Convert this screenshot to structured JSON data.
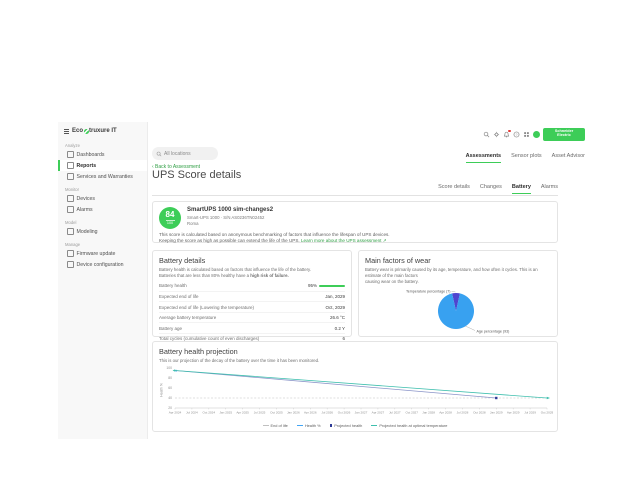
{
  "brand": {
    "prefix": "Eco",
    "suffix": "truxure IT"
  },
  "topbar": {
    "search_placeholder": "All locations",
    "icons": [
      "search-icon",
      "settings-icon",
      "notifications-icon",
      "help-icon",
      "apps-icon",
      "avatar"
    ],
    "notification_badge_color": "#e53935",
    "logo_line1": "Schneider",
    "logo_line2": "Electric"
  },
  "sidebar": {
    "sections": [
      {
        "label": "Analyze",
        "items": [
          {
            "label": "Dashboards",
            "icon": "dashboards-icon",
            "active": false
          },
          {
            "label": "Reports",
            "icon": "reports-icon",
            "active": true
          },
          {
            "label": "Services and Warranties",
            "icon": "services-icon",
            "active": false
          }
        ]
      },
      {
        "label": "Monitor",
        "items": [
          {
            "label": "Devices",
            "icon": "devices-icon",
            "active": false
          },
          {
            "label": "Alarms",
            "icon": "alarms-icon",
            "active": false
          }
        ]
      },
      {
        "label": "Model",
        "items": [
          {
            "label": "Modeling",
            "icon": "modeling-icon",
            "active": false
          }
        ]
      },
      {
        "label": "Manage",
        "items": [
          {
            "label": "Firmware update",
            "icon": "firmware-update-icon",
            "active": false
          },
          {
            "label": "Device configuration",
            "icon": "device-configuration-icon",
            "active": false
          }
        ]
      }
    ]
  },
  "tabs_primary": [
    {
      "label": "Assessments",
      "active": true
    },
    {
      "label": "Sensor plots",
      "active": false
    },
    {
      "label": "Asset Advisor",
      "active": false
    }
  ],
  "page": {
    "back_link": "‹ Back to Assessment",
    "title": "UPS Score details"
  },
  "tabs_secondary": [
    {
      "label": "Score details",
      "active": false
    },
    {
      "label": "Changes",
      "active": false
    },
    {
      "label": "Battery",
      "active": true
    },
    {
      "label": "Alarms",
      "active": false
    }
  ],
  "score_card": {
    "score": "84",
    "score_max": "100",
    "device_name": "SmartUPS 1000 sim-changes2",
    "device_meta": "Smart-UPS 1000 · S/N AS0236TN02452",
    "location": "Roma",
    "description_line1": "This score is calculated based on anonymous benchmarking of factors that influence the lifespan of UPS devices.",
    "description_line2": "Keeping the score as high as possible can extend the life of the UPS.",
    "learn_more_label": "Learn more about the UPS assessment",
    "learn_more_icon": "↗"
  },
  "battery_details": {
    "title": "Battery details",
    "description_line1": "Battery health is calculated based on factors that influence the life of the battery.",
    "description_line2_prefix": "Batteries that are less than 80% healthy have a ",
    "description_line2_bold": "high risk of failure.",
    "rows": [
      {
        "label": "Battery health",
        "value": "95%",
        "bar": true
      },
      {
        "label": "Expected end of life",
        "value": "Jan, 2029"
      },
      {
        "label": "Expected end of life (Lowering the temperature)",
        "value": "Oct, 2029"
      },
      {
        "label": "Average battery temperature",
        "value": "26.6 °C"
      },
      {
        "label": "Battery age",
        "value": "0.2 Y"
      },
      {
        "label": "Total cycles (cumulative count of even discharges)",
        "value": "6"
      }
    ]
  },
  "wear_card": {
    "title": "Main factors of wear",
    "description_line1": "Battery wear is primarily caused by its age, temperature, and how often it cycles. This is an estimate of the main factors",
    "description_line2": "causing wear on the battery."
  },
  "projection_card": {
    "title": "Battery health projection",
    "description": "This is our projection of the decay of the battery over the time it has been monitored."
  },
  "colors": {
    "accent_green": "#3dcd58",
    "link_green": "#2f9e44",
    "pie_age": "#38a1f0",
    "pie_temperature": "#4f44cf",
    "line_health": "#42a5f5",
    "line_projected": "#8a94c8",
    "marker_projected": "#2d3a96",
    "line_optimal": "#3fbfae",
    "end_of_life": "#c0c0c0"
  },
  "chart_data": [
    {
      "type": "pie",
      "title": "Main factors of wear",
      "slices": [
        {
          "label": "Temperature percentage (7)",
          "value": 7,
          "color": "#4f44cf"
        },
        {
          "label": "Age percentage (93)",
          "value": 93,
          "color": "#38a1f0"
        }
      ],
      "legend_position": "none"
    },
    {
      "type": "line",
      "title": "Battery health projection",
      "xlabel": "",
      "ylabel": "Health %",
      "yticks": [
        100,
        80,
        60,
        40,
        20
      ],
      "ylim": [
        20,
        100
      ],
      "grid": false,
      "legend_position": "bottom",
      "x_labels": [
        "Apr 2024",
        "Jul 2024",
        "Oct 2024",
        "Jan 2025",
        "Apr 2025",
        "Jul 2025",
        "Oct 2025",
        "Jan 2026",
        "Apr 2026",
        "Jul 2026",
        "Oct 2026",
        "Jan 2027",
        "Apr 2027",
        "Jul 2027",
        "Oct 2027",
        "Jan 2028",
        "Apr 2028",
        "Jul 2028",
        "Oct 2028",
        "Jan 2029",
        "Apr 2029",
        "Jul 2029",
        "Oct 2029"
      ],
      "end_of_life_threshold": 40,
      "series": [
        {
          "name": "End of life",
          "swatch": "dash",
          "color": "#c0c0c0",
          "dashed": true,
          "threshold": 40
        },
        {
          "name": "Health %",
          "swatch": "line",
          "color": "#42a5f5",
          "points": [
            [
              0,
              95
            ]
          ]
        },
        {
          "name": "Projected health",
          "swatch": "square",
          "color": "#8a94c8",
          "marker_color": "#2d3a96",
          "points": [
            [
              0,
              95
            ],
            [
              19,
              40
            ]
          ]
        },
        {
          "name": "Projected health at optimal temperature",
          "swatch": "line",
          "color": "#3fbfae",
          "arrow": true,
          "points": [
            [
              0,
              95
            ],
            [
              22,
              40
            ]
          ]
        }
      ]
    }
  ]
}
